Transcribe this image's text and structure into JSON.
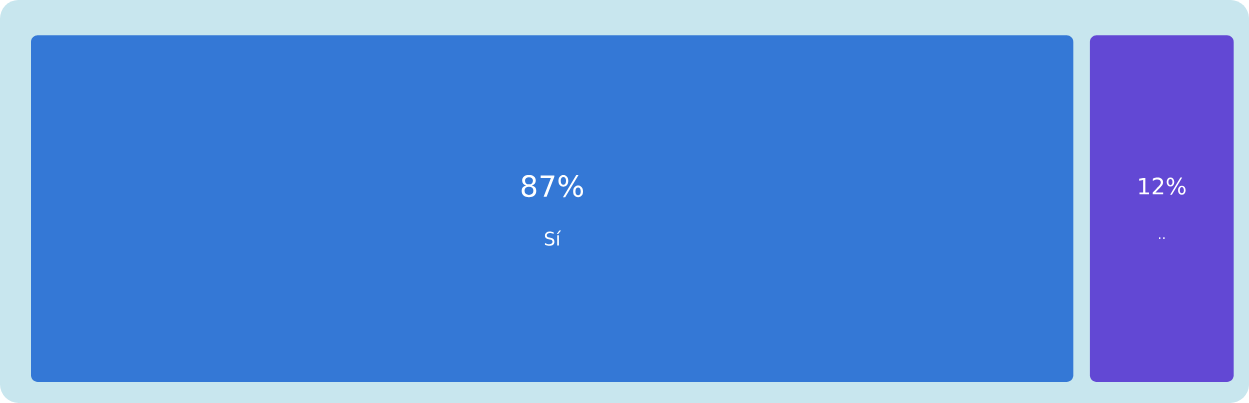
{
  "chart_data": {
    "type": "other",
    "categories": [
      "Sí",
      ".."
    ],
    "values": [
      87,
      12
    ],
    "value_labels": [
      "87%",
      "12%"
    ],
    "colors": [
      "#3478d6",
      "#6248d4"
    ]
  }
}
